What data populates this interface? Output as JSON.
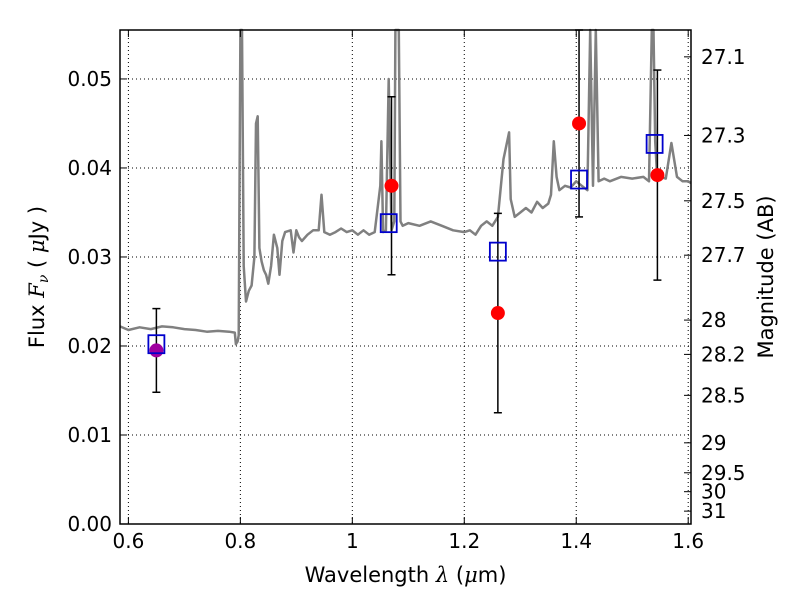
{
  "chart_data": {
    "type": "line",
    "title": "",
    "xlabel": {
      "prefix": "Wavelength",
      "symbol": "λ",
      "unit_open": "(",
      "unit_mu": "μ",
      "unit_rest": "m)"
    },
    "ylabel": {
      "prefix": "Flux",
      "symbol": "F",
      "subscript": "ν",
      "unit_open": "(",
      "unit_mu": "μ",
      "unit_rest": "Jy )"
    },
    "y2label": "Magnitude (AB)",
    "xlim": [
      0.585,
      1.605
    ],
    "ylim": [
      0.0,
      0.0555
    ],
    "x_ticks": [
      0.6,
      0.8,
      1.0,
      1.2,
      1.4,
      1.6
    ],
    "x_tick_labels": [
      "0.6",
      "0.8",
      "1",
      "1.2",
      "1.4",
      "1.6"
    ],
    "y_ticks": [
      0.0,
      0.01,
      0.02,
      0.03,
      0.04,
      0.05
    ],
    "y_tick_labels": [
      "0.00",
      "0.01",
      "0.02",
      "0.03",
      "0.04",
      "0.05"
    ],
    "mag_ticks": [
      {
        "label": "27.1",
        "mag": 27.1
      },
      {
        "label": "27.3",
        "mag": 27.3
      },
      {
        "label": "27.5",
        "mag": 27.5
      },
      {
        "label": "27.7",
        "mag": 27.7
      },
      {
        "label": "28",
        "mag": 28.0
      },
      {
        "label": "28.2",
        "mag": 28.2
      },
      {
        "label": "28.5",
        "mag": 28.5
      },
      {
        "label": "29",
        "mag": 29.0
      },
      {
        "label": "29.5",
        "mag": 29.5
      },
      {
        "label": "30",
        "mag": 30.0
      },
      {
        "label": "31",
        "mag": 31.0
      }
    ],
    "grid": true,
    "colors": {
      "model": "#808080",
      "observed": "#ff0000",
      "observed_blend": "#a000a0",
      "model_band": "#0000cc",
      "errorbar": "#000000"
    },
    "model_spectrum": {
      "x": [
        0.585,
        0.6,
        0.62,
        0.64,
        0.66,
        0.68,
        0.7,
        0.72,
        0.74,
        0.76,
        0.78,
        0.79,
        0.792,
        0.795,
        0.797,
        0.8,
        0.803,
        0.806,
        0.81,
        0.815,
        0.82,
        0.825,
        0.828,
        0.831,
        0.834,
        0.838,
        0.842,
        0.846,
        0.85,
        0.855,
        0.86,
        0.866,
        0.87,
        0.875,
        0.88,
        0.89,
        0.895,
        0.9,
        0.905,
        0.91,
        0.92,
        0.93,
        0.94,
        0.945,
        0.95,
        0.96,
        0.97,
        0.98,
        0.99,
        1.0,
        1.01,
        1.02,
        1.03,
        1.04,
        1.05,
        1.052,
        1.055,
        1.06,
        1.065,
        1.07,
        1.075,
        1.077,
        1.08,
        1.083,
        1.086,
        1.09,
        1.1,
        1.12,
        1.14,
        1.16,
        1.18,
        1.2,
        1.21,
        1.22,
        1.23,
        1.24,
        1.25,
        1.26,
        1.27,
        1.28,
        1.283,
        1.29,
        1.3,
        1.31,
        1.32,
        1.33,
        1.34,
        1.35,
        1.355,
        1.36,
        1.365,
        1.37,
        1.38,
        1.39,
        1.4,
        1.41,
        1.42,
        1.425,
        1.43,
        1.435,
        1.44,
        1.45,
        1.46,
        1.48,
        1.5,
        1.52,
        1.53,
        1.535,
        1.538,
        1.541,
        1.545,
        1.55,
        1.56,
        1.57,
        1.58,
        1.59,
        1.6,
        1.605
      ],
      "y": [
        0.0222,
        0.0218,
        0.0221,
        0.0219,
        0.0222,
        0.0221,
        0.0219,
        0.0218,
        0.0216,
        0.0217,
        0.0216,
        0.0215,
        0.0202,
        0.0205,
        0.0212,
        0.0555,
        0.0555,
        0.029,
        0.025,
        0.0262,
        0.0268,
        0.03,
        0.045,
        0.0458,
        0.031,
        0.0295,
        0.0285,
        0.028,
        0.027,
        0.029,
        0.0325,
        0.031,
        0.028,
        0.0318,
        0.0328,
        0.033,
        0.0305,
        0.033,
        0.0322,
        0.0318,
        0.0325,
        0.033,
        0.033,
        0.037,
        0.0328,
        0.0325,
        0.0328,
        0.0332,
        0.0328,
        0.033,
        0.0325,
        0.033,
        0.0325,
        0.0328,
        0.038,
        0.043,
        0.0328,
        0.033,
        0.05,
        0.033,
        0.034,
        0.0555,
        0.0555,
        0.0555,
        0.034,
        0.0335,
        0.0338,
        0.0335,
        0.034,
        0.0335,
        0.033,
        0.0328,
        0.033,
        0.0325,
        0.0335,
        0.034,
        0.0335,
        0.0345,
        0.041,
        0.044,
        0.0365,
        0.0345,
        0.035,
        0.0355,
        0.035,
        0.0362,
        0.0355,
        0.036,
        0.037,
        0.043,
        0.039,
        0.0375,
        0.038,
        0.0378,
        0.0385,
        0.038,
        0.0375,
        0.0555,
        0.038,
        0.0555,
        0.0385,
        0.0388,
        0.0385,
        0.039,
        0.0388,
        0.039,
        0.0385,
        0.0555,
        0.0555,
        0.043,
        0.0385,
        0.039,
        0.0388,
        0.0428,
        0.039,
        0.0385,
        0.0385,
        0.0383
      ]
    },
    "observed": [
      {
        "x": 0.65,
        "y": 0.0195,
        "err_lo": 0.0047,
        "err_hi": 0.0047,
        "blend": true
      },
      {
        "x": 1.07,
        "y": 0.038,
        "err_lo": 0.01,
        "err_hi": 0.01,
        "blend": false
      },
      {
        "x": 1.26,
        "y": 0.0237,
        "err_lo": 0.0112,
        "err_hi": 0.0112,
        "blend": false
      },
      {
        "x": 1.405,
        "y": 0.045,
        "err_lo": 0.0105,
        "err_hi": 0.0105,
        "blend": false
      },
      {
        "x": 1.545,
        "y": 0.0392,
        "err_lo": 0.0118,
        "err_hi": 0.0118,
        "blend": false
      }
    ],
    "model_bands": [
      {
        "x": 0.65,
        "y": 0.0202
      },
      {
        "x": 1.065,
        "y": 0.0338
      },
      {
        "x": 1.26,
        "y": 0.0306
      },
      {
        "x": 1.405,
        "y": 0.0387
      },
      {
        "x": 1.54,
        "y": 0.0427
      }
    ]
  }
}
